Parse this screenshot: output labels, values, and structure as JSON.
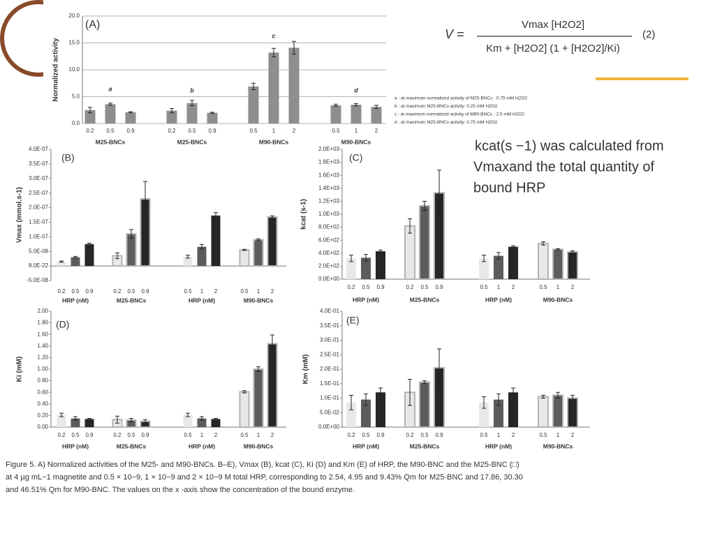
{
  "chart_data": [
    {
      "type": "bar",
      "panel": "(A)",
      "ylabel": "Normalized activity",
      "grid": true,
      "ylim": [
        0,
        20
      ],
      "yticks": [
        {
          "value": 0,
          "label": "0.0"
        },
        {
          "value": 5,
          "label": "5.0"
        },
        {
          "value": 10,
          "label": "10.0"
        },
        {
          "value": 15,
          "label": "15.0"
        },
        {
          "value": 20,
          "label": "20.0"
        }
      ],
      "categories": [
        "0.2",
        "0.5",
        "0.9",
        "0.2",
        "0.5",
        "0.9",
        "0.5",
        "1",
        "2",
        "0.5",
        "1",
        "2"
      ],
      "groups": [
        "M25-BNCs",
        "M25-BNCs",
        "M90-BNCs",
        "M90-BNCs"
      ],
      "annotations": [
        "a",
        "b",
        "c",
        "d"
      ],
      "values": [
        2.5,
        3.6,
        2.1,
        2.4,
        3.8,
        2.0,
        6.9,
        13.2,
        14.1,
        3.4,
        3.5,
        3.1
      ],
      "errors": [
        0.5,
        0.2,
        0.1,
        0.4,
        0.5,
        0.1,
        0.6,
        0.8,
        1.2,
        0.2,
        0.2,
        0.3
      ],
      "shades": [
        "#8e8e8e",
        "#8e8e8e",
        "#8e8e8e"
      ],
      "edges": [
        "none",
        "none",
        "none",
        "none"
      ],
      "notes": [
        "a : at maximum normalized activity of M25-BNCs : 0.75 mM H2O2",
        "b : at maximum M25-BNCs activity: 0.25 mM H2O2",
        "c : at maximum normalized activity of M90-BNCs : 2.5 mM H2O2",
        "d : at maximum M25-BNCs activity: 0.75 mM H2O2"
      ]
    },
    {
      "type": "bar",
      "panel": "(B)",
      "ylabel": "Vmax (mmol.s-1)",
      "grid": false,
      "ylim": [
        -5e-08,
        4e-07
      ],
      "yticks": [
        {
          "value": -5e-08,
          "label": "-5.0E-08"
        },
        {
          "value": 8e-22,
          "label": "8.0E-22"
        },
        {
          "value": 5e-08,
          "label": "5.0E-08"
        },
        {
          "value": 1e-07,
          "label": "1.0E-07"
        },
        {
          "value": 1.5e-07,
          "label": "1.5E-07"
        },
        {
          "value": 2e-07,
          "label": "2.0E-07"
        },
        {
          "value": 2.5e-07,
          "label": "2.5E-07"
        },
        {
          "value": 3e-07,
          "label": "3.0E-07"
        },
        {
          "value": 3.5e-07,
          "label": "3.5E-07"
        },
        {
          "value": 4e-07,
          "label": "4.0E-07"
        }
      ],
      "categories": [
        "0.2",
        "0.5",
        "0.9",
        "0.2",
        "0.5",
        "0.9",
        "0.5",
        "1",
        "2",
        "0.5",
        "1",
        "2"
      ],
      "groups": [
        "HRP (nM)",
        "M25-BNCs",
        "HRP (nM)",
        "M90-BNCs"
      ],
      "values": [
        1.5e-08,
        3e-08,
        7.5e-08,
        3.5e-08,
        1.1e-07,
        2.3e-07,
        3.2e-08,
        6.6e-08,
        1.73e-07,
        5.5e-08,
        9e-08,
        1.68e-07
      ],
      "errors": [
        2e-09,
        3e-09,
        3e-09,
        1e-08,
        1.5e-08,
        6e-08,
        5e-09,
        8e-09,
        1e-08,
        2e-09,
        3e-09,
        4e-09
      ],
      "shades": [
        "#e8e8e8",
        "#5c5c5c",
        "#262626"
      ],
      "edges": [
        "none",
        "#b3b3b3",
        "none",
        "#b3b3b3"
      ]
    },
    {
      "type": "bar",
      "panel": "(C)",
      "ylabel": "kcat (s-1)",
      "grid": false,
      "ylim": [
        0,
        2000
      ],
      "yticks": [
        {
          "value": 0,
          "label": "0.0E+00"
        },
        {
          "value": 200,
          "label": "2.0E+02"
        },
        {
          "value": 400,
          "label": "4.0E+02"
        },
        {
          "value": 600,
          "label": "6.0E+02"
        },
        {
          "value": 800,
          "label": "8.0E+02"
        },
        {
          "value": 1000,
          "label": "1.0E+03"
        },
        {
          "value": 1200,
          "label": "1.2E+03"
        },
        {
          "value": 1400,
          "label": "1.4E+03"
        },
        {
          "value": 1600,
          "label": "1.6E+03"
        },
        {
          "value": 1800,
          "label": "1.8E+03"
        },
        {
          "value": 2000,
          "label": "2.0E+03"
        }
      ],
      "categories": [
        "0.2",
        "0.5",
        "0.9",
        "0.2",
        "0.5",
        "0.9",
        "0.5",
        "1",
        "2",
        "0.5",
        "1",
        "2"
      ],
      "groups": [
        "HRP (nM)",
        "M25-BNCs",
        "HRP (nM)",
        "M90-BNCs"
      ],
      "values": [
        320,
        330,
        430,
        820,
        1130,
        1330,
        320,
        360,
        500,
        550,
        460,
        420
      ],
      "errors": [
        50,
        50,
        20,
        110,
        70,
        350,
        50,
        50,
        15,
        25,
        10,
        15
      ],
      "shades": [
        "#e8e8e8",
        "#5c5c5c",
        "#262626"
      ],
      "edges": [
        "none",
        "#b3b3b3",
        "none",
        "#b3b3b3"
      ]
    },
    {
      "type": "bar",
      "panel": "(D)",
      "ylabel": "Ki (mM)",
      "grid": false,
      "ylim": [
        0,
        2
      ],
      "yticks": [
        {
          "value": 0,
          "label": "0.00"
        },
        {
          "value": 0.2,
          "label": "0.20"
        },
        {
          "value": 0.4,
          "label": "0.40"
        },
        {
          "value": 0.6,
          "label": "0.60"
        },
        {
          "value": 0.8,
          "label": "0.80"
        },
        {
          "value": 1,
          "label": "1.00"
        },
        {
          "value": 1.2,
          "label": "1.20"
        },
        {
          "value": 1.4,
          "label": "1.40"
        },
        {
          "value": 1.6,
          "label": "1.60"
        },
        {
          "value": 1.8,
          "label": "1.80"
        },
        {
          "value": 2,
          "label": "2.00"
        }
      ],
      "categories": [
        "0.2",
        "0.5",
        "0.9",
        "0.2",
        "0.5",
        "0.9",
        "0.5",
        "1",
        "2",
        "0.5",
        "1",
        "2"
      ],
      "groups": [
        "HRP (nM)",
        "M25-BNCs",
        "HRP (nM)",
        "M90-BNCs"
      ],
      "values": [
        0.21,
        0.15,
        0.14,
        0.13,
        0.12,
        0.1,
        0.21,
        0.15,
        0.14,
        0.61,
        1.0,
        1.44
      ],
      "errors": [
        0.03,
        0.03,
        0.01,
        0.06,
        0.03,
        0.03,
        0.03,
        0.03,
        0.01,
        0.02,
        0.04,
        0.15
      ],
      "shades": [
        "#e8e8e8",
        "#5c5c5c",
        "#262626"
      ],
      "edges": [
        "none",
        "#b3b3b3",
        "none",
        "#b3b3b3"
      ]
    },
    {
      "type": "bar",
      "panel": "(E)",
      "ylabel": "Km (mM)",
      "grid": false,
      "ylim": [
        0,
        0.4
      ],
      "yticks": [
        {
          "value": 0,
          "label": "0.0E+00"
        },
        {
          "value": 0.05,
          "label": "5.0E-02"
        },
        {
          "value": 0.1,
          "label": "1.0E-01"
        },
        {
          "value": 0.15,
          "label": "1.5E-01"
        },
        {
          "value": 0.2,
          "label": "2.0E-01"
        },
        {
          "value": 0.25,
          "label": "2.5E-01"
        },
        {
          "value": 0.3,
          "label": "3.0E-01"
        },
        {
          "value": 0.35,
          "label": "3.5E-01"
        },
        {
          "value": 0.4,
          "label": "4.0E-01"
        }
      ],
      "categories": [
        "0.2",
        "0.5",
        "0.9",
        "0.2",
        "0.5",
        "0.9",
        "0.5",
        "1",
        "2",
        "0.5",
        "1",
        "2"
      ],
      "groups": [
        "HRP (nM)",
        "M25-BNCs",
        "HRP (nM)",
        "M90-BNCs"
      ],
      "values": [
        0.085,
        0.095,
        0.12,
        0.12,
        0.155,
        0.205,
        0.085,
        0.095,
        0.12,
        0.105,
        0.11,
        0.1
      ],
      "errors": [
        0.025,
        0.02,
        0.015,
        0.045,
        0.005,
        0.065,
        0.02,
        0.02,
        0.015,
        0.005,
        0.01,
        0.01
      ],
      "shades": [
        "#e8e8e8",
        "#5c5c5c",
        "#262626"
      ],
      "edges": [
        "none",
        "#b3b3b3",
        "none",
        "#b3b3b3"
      ]
    }
  ],
  "equation": {
    "lhs": "V =",
    "numerator": "Vmax [H2O2]",
    "denominator": "Km + [H2O2] (1 + [H2O2]/Ki)",
    "number": "(2)"
  },
  "note": [
    "kcat(s −1) was calculated from",
    "Vmaxand the total quantity of",
    "bound HRP"
  ],
  "caption": [
    "Figure 5.  A) Normalized activities of the M25- and M90-BNCs. B–E), Vmax (B), kcat (C), Ki (D) and Km (E) of HRP, the M90-BNC and the M25-BNC (□)",
    "at 4 µg mL−1 magnetite and 0.5 × 10−9, 1 × 10−9 and 2 × 10−9 M total HRP, corresponding to 2.54, 4.95 and 9.43% Qm for M25-BNC and 17.86, 30.30",
    "and 46.51% Qm for M90-BNC. The values on the x -axis show the concentration of the bound enzyme."
  ]
}
